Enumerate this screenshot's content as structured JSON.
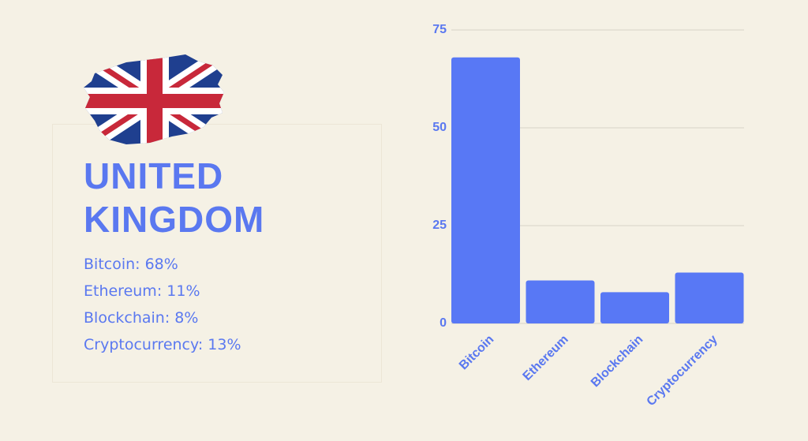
{
  "sidebar": {
    "title": "UNITED KINGDOM",
    "items": [
      "Bitcoin: 68%",
      "Ethereum: 11%",
      "Blockchain: 8%",
      "Cryptocurrency: 13%"
    ]
  },
  "chart_data": {
    "type": "bar",
    "categories": [
      "Bitcoin",
      "Ethereum",
      "Blockchain",
      "Cryptocurrency"
    ],
    "values": [
      68,
      11,
      8,
      13
    ],
    "color": "#5878f5",
    "ylim": [
      0,
      75
    ],
    "yticks": [
      0,
      25,
      50,
      75
    ],
    "grid": true
  }
}
